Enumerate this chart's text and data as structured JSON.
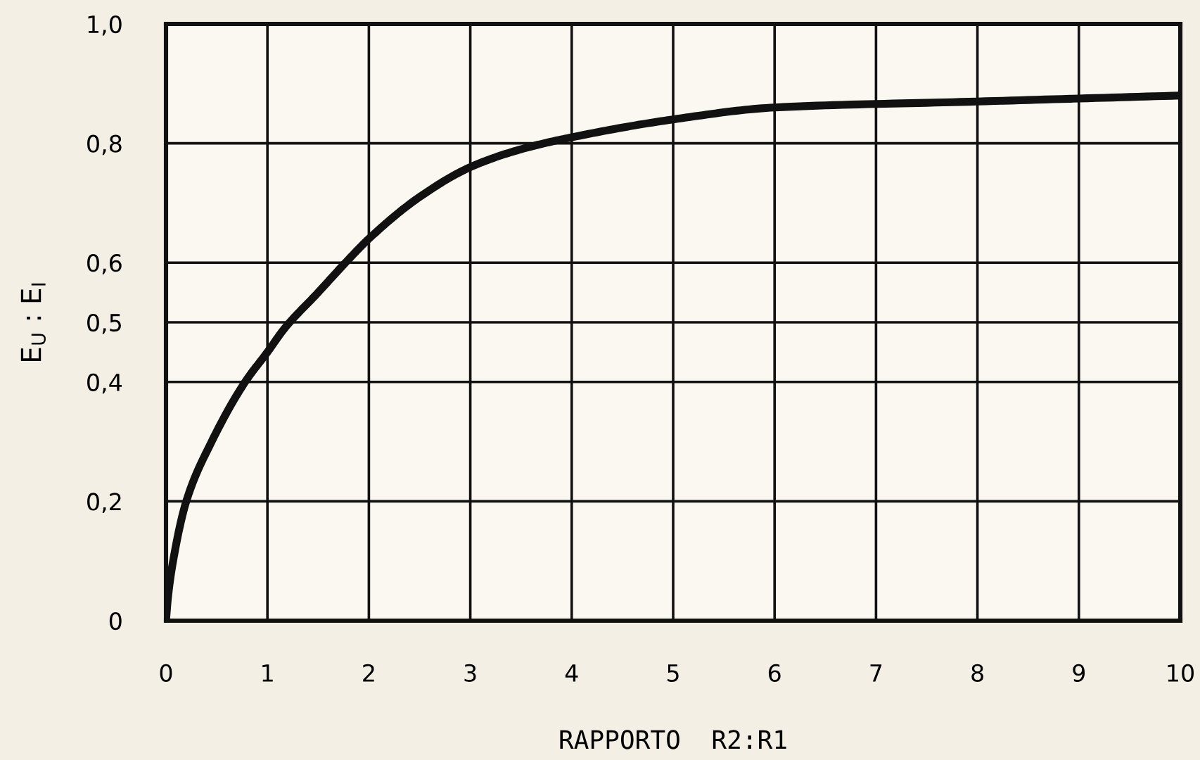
{
  "chart_data": {
    "type": "line",
    "xlabel": "RAPPORTO  R2:R1",
    "ylabel": "E$_{U}$ : E$_{I}$",
    "x": [
      0,
      0.02,
      0.07,
      0.2,
      0.45,
      0.78,
      1,
      1.17,
      1.5,
      1.77,
      2,
      2.5,
      3,
      3.5,
      4,
      5,
      6,
      8,
      10
    ],
    "series": [
      {
        "color": "#111111",
        "values": [
          0,
          0.04,
          0.1,
          0.2,
          0.3,
          0.4,
          0.45,
          0.49,
          0.55,
          0.6,
          0.64,
          0.71,
          0.76,
          0.79,
          0.81,
          0.84,
          0.86,
          0.87,
          0.88
        ]
      }
    ],
    "xlim": [
      0,
      10
    ],
    "xticks": [
      0,
      1,
      2,
      3,
      4,
      5,
      6,
      7,
      8,
      9,
      10
    ],
    "ylim": [
      0,
      1.0
    ],
    "yticks": [
      0,
      {
        "value": 0.2,
        "label": "0,2"
      },
      {
        "value": 0.4,
        "label": "0,4"
      },
      {
        "value": 0.5,
        "label": "0,5"
      },
      {
        "value": 0.6,
        "label": "0,6"
      },
      {
        "value": 0.8,
        "label": "0,8"
      },
      {
        "value": 1.0,
        "label": "1,0"
      }
    ],
    "grid": true
  }
}
